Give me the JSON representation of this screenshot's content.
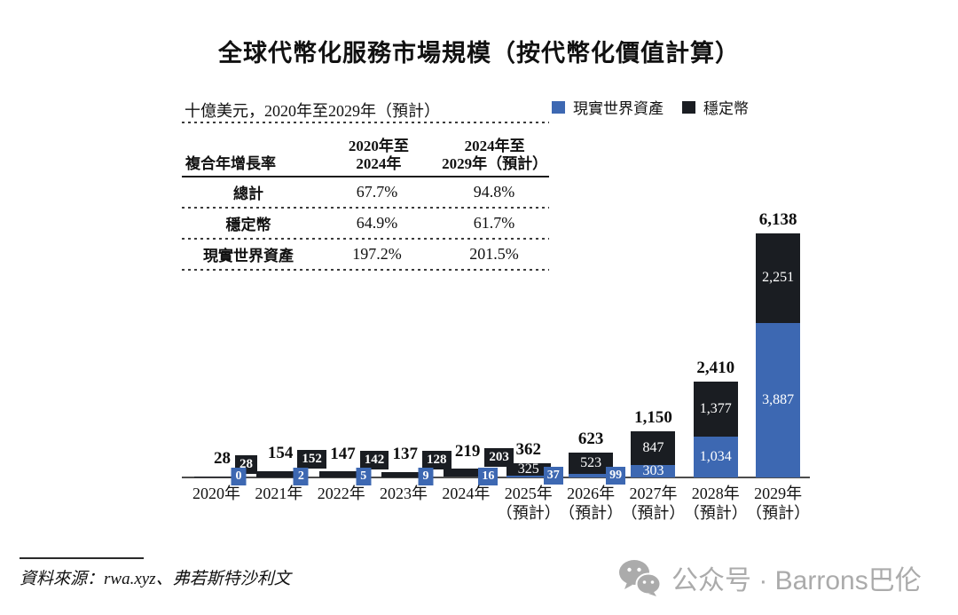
{
  "title": "全球代幣化服務市場規模（按代幣化價值計算）",
  "subtitle": "十億美元，2020年至2029年（預計）",
  "legend": [
    {
      "label": "現實世界資產",
      "color": "#3d68b2"
    },
    {
      "label": "穩定幣",
      "color": "#1a1d22"
    }
  ],
  "table": {
    "header": {
      "col1": "複合年增長率",
      "col2_line1": "2020年至",
      "col2_line2": "2024年",
      "col3_line1": "2024年至",
      "col3_line2": "2029年（預計）"
    },
    "rows": [
      {
        "label": "總計",
        "v1": "67.7%",
        "v2": "94.8%"
      },
      {
        "label": "穩定幣",
        "v1": "64.9%",
        "v2": "61.7%"
      },
      {
        "label": "現實世界資產",
        "v1": "197.2%",
        "v2": "201.5%"
      }
    ]
  },
  "chart_data": {
    "type": "bar",
    "stacked": true,
    "unit": "十億美元",
    "categories": [
      {
        "label": "2020年",
        "sub": ""
      },
      {
        "label": "2021年",
        "sub": ""
      },
      {
        "label": "2022年",
        "sub": ""
      },
      {
        "label": "2023年",
        "sub": ""
      },
      {
        "label": "2024年",
        "sub": ""
      },
      {
        "label": "2025年",
        "sub": "（預計）"
      },
      {
        "label": "2026年",
        "sub": "（預計）"
      },
      {
        "label": "2027年",
        "sub": "（預計）"
      },
      {
        "label": "2028年",
        "sub": "（預計）"
      },
      {
        "label": "2029年",
        "sub": "（預計）"
      }
    ],
    "series": [
      {
        "name": "現實世界資產",
        "color": "#3d68b2",
        "values": [
          0,
          2,
          5,
          9,
          16,
          37,
          99,
          303,
          1034,
          3887
        ]
      },
      {
        "name": "穩定幣",
        "color": "#1a1d22",
        "values": [
          28,
          152,
          142,
          128,
          203,
          325,
          523,
          847,
          1377,
          2251
        ]
      }
    ],
    "totals": [
      28,
      154,
      147,
      137,
      219,
      362,
      623,
      1150,
      2410,
      6138
    ],
    "ylim": [
      0,
      6500
    ],
    "grid": false,
    "legend_position": "top-right"
  },
  "source": "資料來源：rwa.xyz、弗若斯特沙利文",
  "watermark": {
    "icon": "wechat-icon",
    "text": "公众号 · Barrons巴伦"
  }
}
